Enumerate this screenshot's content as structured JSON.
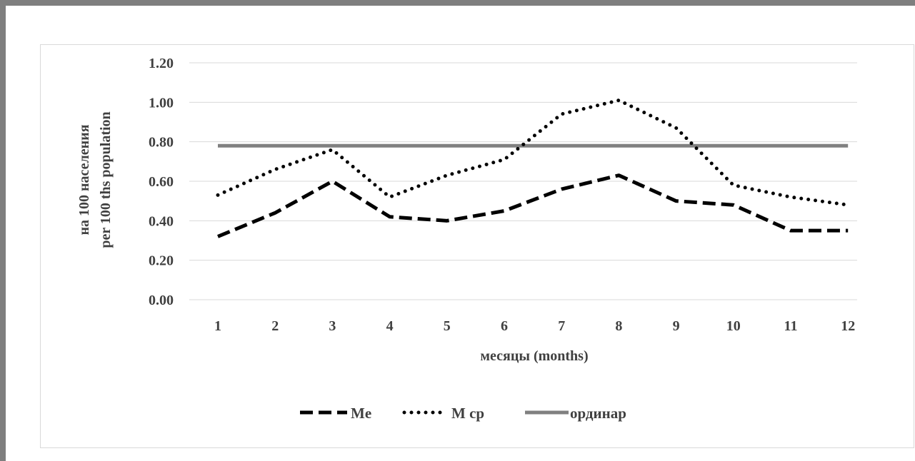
{
  "chart_data": {
    "type": "line",
    "title": "",
    "xlabel": "месяцы (months)",
    "ylabel_lines": [
      "на 100 населения",
      "per 100 ths population"
    ],
    "categories": [
      "1",
      "2",
      "3",
      "4",
      "5",
      "6",
      "7",
      "8",
      "9",
      "10",
      "11",
      "12"
    ],
    "yticks": [
      "0.00",
      "0.20",
      "0.40",
      "0.60",
      "0.80",
      "1.00",
      "1.20"
    ],
    "ylim": [
      0,
      1.2
    ],
    "grid": "horizontal",
    "legend_position": "bottom",
    "series": [
      {
        "name": "Me",
        "style": "dashed",
        "color": "#000000",
        "values": [
          0.32,
          0.44,
          0.6,
          0.42,
          0.4,
          0.45,
          0.56,
          0.63,
          0.5,
          0.48,
          0.35,
          0.35
        ]
      },
      {
        "name": "M ср",
        "style": "dotted",
        "color": "#000000",
        "values": [
          0.53,
          0.66,
          0.76,
          0.52,
          0.63,
          0.71,
          0.94,
          1.01,
          0.87,
          0.58,
          0.52,
          0.48
        ]
      },
      {
        "name": "ординар",
        "style": "solid",
        "color": "#808080",
        "values": [
          0.78,
          0.78,
          0.78,
          0.78,
          0.78,
          0.78,
          0.78,
          0.78,
          0.78,
          0.78,
          0.78,
          0.78
        ]
      }
    ]
  }
}
